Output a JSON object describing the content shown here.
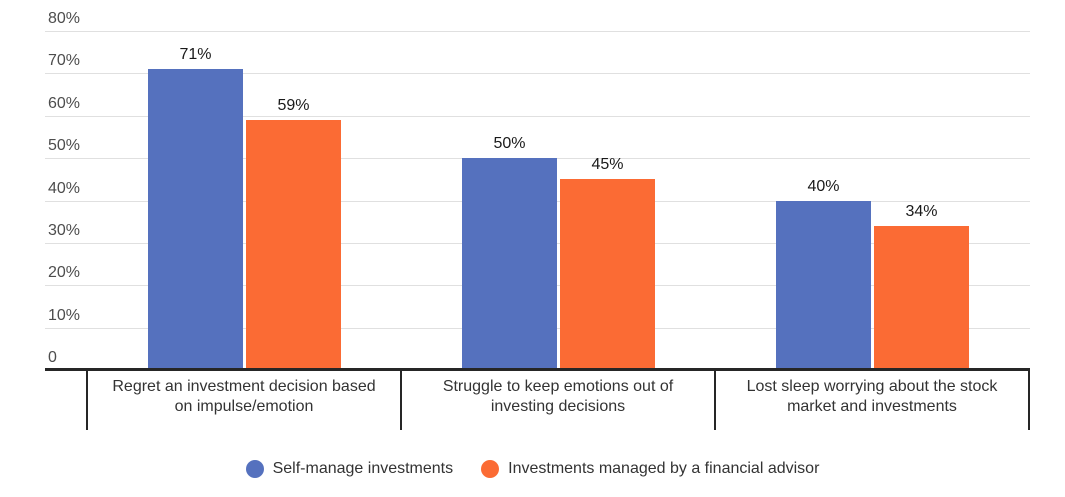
{
  "chart_data": {
    "type": "bar",
    "title": "",
    "xlabel": "",
    "ylabel": "",
    "ylim": [
      0,
      80
    ],
    "grid": true,
    "legend_position": "bottom",
    "categories": [
      "Regret an investment decision based on impulse/emotion",
      "Struggle to keep emotions out of investing decisions",
      "Lost sleep worrying about the stock market and investments"
    ],
    "series": [
      {
        "name": "Self-manage investments",
        "color": "#5571BE",
        "values": [
          71,
          50,
          40
        ],
        "value_labels": [
          "71%",
          "50%",
          "40%"
        ]
      },
      {
        "name": "Investments managed by a financial advisor",
        "color": "#FB6B34",
        "values": [
          59,
          45,
          34
        ],
        "value_labels": [
          "59%",
          "45%",
          "34%"
        ]
      }
    ],
    "yticks": [
      {
        "value": 80,
        "label": "80%"
      },
      {
        "value": 70,
        "label": "70%"
      },
      {
        "value": 60,
        "label": "60%"
      },
      {
        "value": 50,
        "label": "50%"
      },
      {
        "value": 40,
        "label": "40%"
      },
      {
        "value": 30,
        "label": "30%"
      },
      {
        "value": 20,
        "label": "20%"
      },
      {
        "value": 10,
        "label": "10%"
      },
      {
        "value": 0,
        "label": "0"
      }
    ]
  },
  "colors": {
    "series_blue": "#5571BE",
    "series_orange": "#FB6B34",
    "gridline": "#e0e0e0",
    "axis": "#262626",
    "tick_text": "#4d4d4d",
    "category_text": "#333333",
    "value_text": "#1a1a1a",
    "background": "#ffffff"
  }
}
